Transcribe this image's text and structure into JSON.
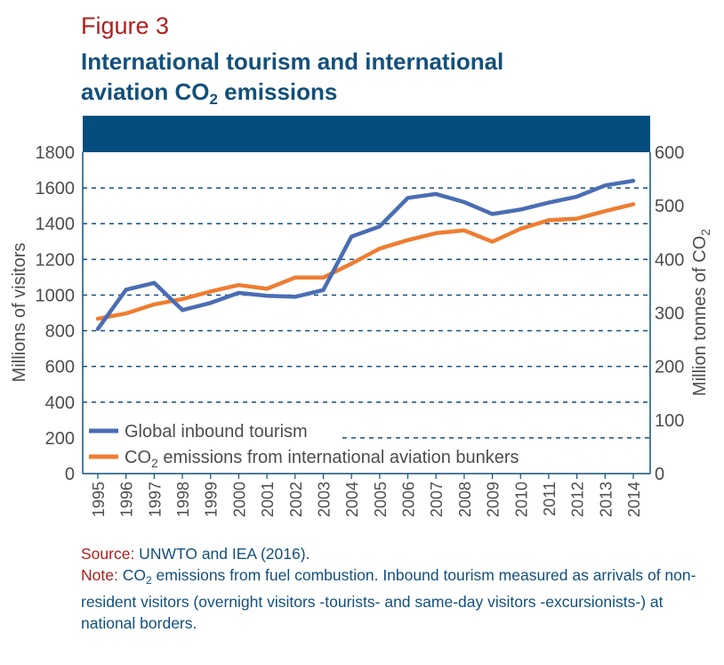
{
  "figure": {
    "label": "Figure 3",
    "title_line1": "International tourism and international",
    "title_line2_pre": "aviation CO",
    "title_line2_sub": "2",
    "title_line2_post": " emissions"
  },
  "footer": {
    "source_label": "Source:",
    "source_text": "  UNWTO and IEA (2016).",
    "note_label": "Note:",
    "note_pre": " CO",
    "note_sub": "2",
    "note_post": " emissions from fuel combustion. Inbound tourism measured as arrivals of non-resident visitors (overnight visitors -tourists- and same-day visitors -excursionists-) at national borders."
  },
  "colors": {
    "tourism": "#4a6db4",
    "co2": "#ee7d31",
    "axis": "#13507c",
    "header_band": "#034e7d",
    "text": "#4d4d4d"
  },
  "chart_data": {
    "type": "line",
    "x": [
      "1995",
      "1996",
      "1997",
      "1998",
      "1999",
      "2000",
      "2001",
      "2002",
      "2003",
      "2004",
      "2005",
      "2006",
      "2007",
      "2008",
      "2009",
      "2010",
      "2011",
      "2012",
      "2013",
      "2014"
    ],
    "ylabel": "Millions of visitors",
    "ylabel_right_pre": "Million tonnes of CO",
    "ylabel_right_sub": "2",
    "ylim": [
      0,
      1800
    ],
    "ylim_right": [
      0,
      600
    ],
    "yticks": [
      "0",
      "200",
      "400",
      "600",
      "800",
      "1000",
      "1200",
      "1400",
      "1600",
      "1800"
    ],
    "yticks_right": [
      "0",
      "100",
      "200",
      "300",
      "400",
      "500",
      "600"
    ],
    "grid": "horizontal dashed",
    "legend_position": "bottom-left",
    "series": [
      {
        "name": "Global inbound tourism",
        "axis": "left",
        "values": [
          810,
          1030,
          1068,
          916,
          956,
          1012,
          996,
          990,
          1028,
          1328,
          1384,
          1544,
          1566,
          1521,
          1454,
          1479,
          1518,
          1551,
          1614,
          1640
        ]
      },
      {
        "name_pre": "CO",
        "name_sub": "2",
        "name_post": " emissions from international aviation bunkers",
        "axis": "right",
        "values": [
          289,
          299,
          316,
          326,
          340,
          352,
          345,
          366,
          366,
          392,
          420,
          436,
          449,
          454,
          433,
          457,
          473,
          476,
          490,
          503
        ]
      }
    ]
  }
}
